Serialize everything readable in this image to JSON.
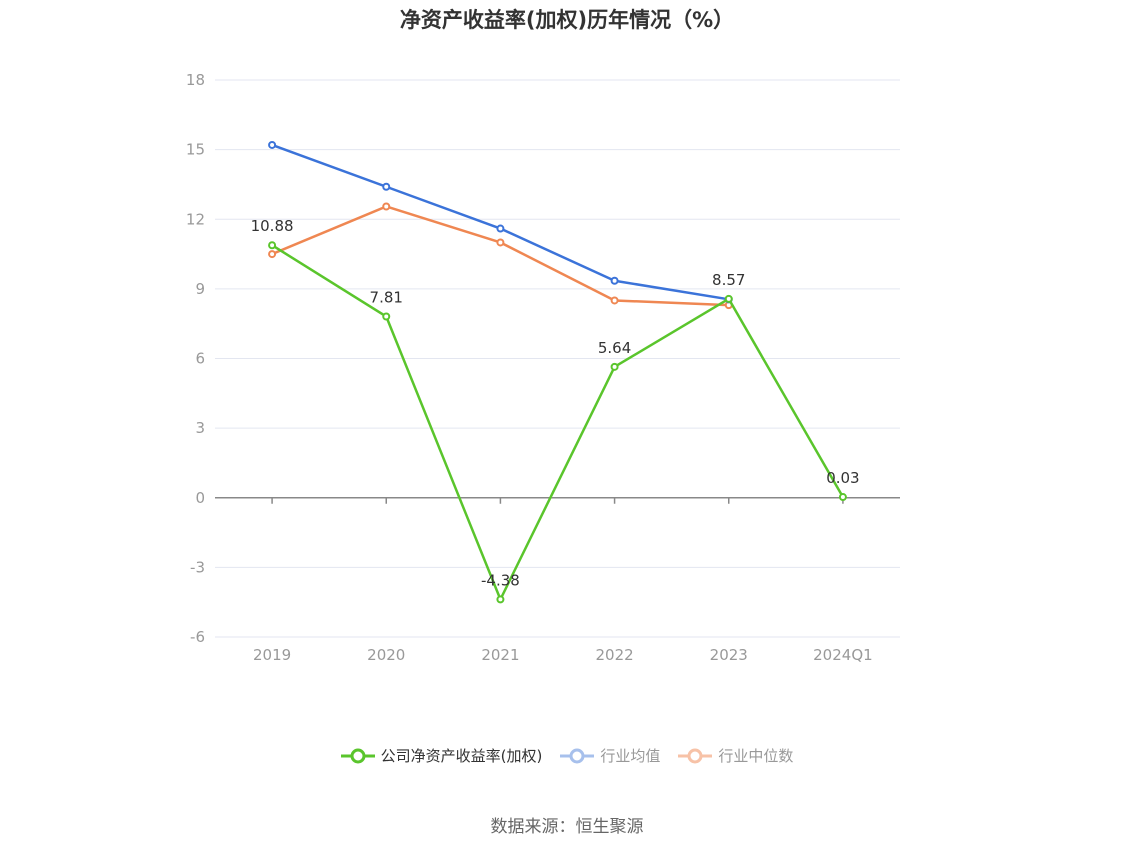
{
  "chart_data": {
    "type": "line",
    "title": "净资产收益率(加权)历年情况（%）",
    "categories": [
      "2019",
      "2020",
      "2021",
      "2022",
      "2023",
      "2024Q1"
    ],
    "ylim": [
      -6,
      18
    ],
    "yticks": [
      -6,
      -3,
      0,
      3,
      6,
      9,
      12,
      15,
      18
    ],
    "grid": true,
    "legend_position": "bottom-center",
    "series": [
      {
        "name": "公司净资产收益率(加权)",
        "color": "#5ac52c",
        "values": [
          10.88,
          7.81,
          -4.38,
          5.64,
          8.57,
          0.03
        ],
        "labels": [
          "10.88",
          "7.81",
          "-4.38",
          "5.64",
          "8.57",
          "0.03"
        ]
      },
      {
        "name": "行业均值",
        "color": "#3b73d9",
        "legend_color": "#a7c0ec",
        "values": [
          15.2,
          13.4,
          11.6,
          9.35,
          8.55,
          null
        ]
      },
      {
        "name": "行业中位数",
        "color": "#ef8752",
        "legend_color": "#f7c2a7",
        "values": [
          10.5,
          12.55,
          11.0,
          8.5,
          8.3,
          null
        ]
      }
    ]
  },
  "source": "数据来源：恒生聚源"
}
